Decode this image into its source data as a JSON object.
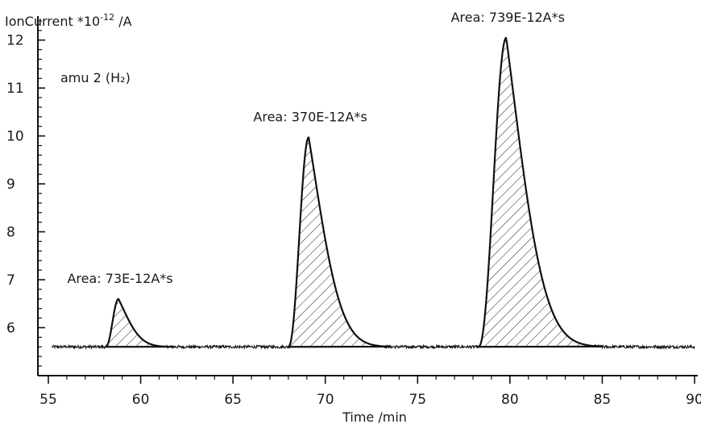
{
  "chart_data": {
    "type": "line",
    "title": "",
    "ylabel": "IonCurrent *10-12 /A",
    "ylabel_base": "IonCurrent *10",
    "ylabel_exp": "-12",
    "ylabel_unit": " /A",
    "xlabel": "Time /min",
    "series_label": "amu 2 (H₂)",
    "xlim": [
      55,
      90
    ],
    "ylim": [
      5.1,
      12.5
    ],
    "x_ticks": [
      55,
      60,
      65,
      70,
      75,
      80,
      85,
      90
    ],
    "y_ticks": [
      6,
      7,
      8,
      9,
      10,
      11,
      12
    ],
    "baseline": 5.6,
    "noise_amplitude": 0.03,
    "grid": false,
    "peaks": [
      {
        "start": 58.1,
        "apex": 58.8,
        "height": 6.6,
        "end": 61.8,
        "area_label": "Area: 73E-12A*s"
      },
      {
        "start": 68.0,
        "apex": 69.1,
        "height": 9.97,
        "end": 73.5,
        "area_label": "Area: 370E-12A*s"
      },
      {
        "start": 78.3,
        "apex": 79.8,
        "height": 12.05,
        "end": 85.0,
        "area_label": "Area: 739E-12A*s"
      }
    ]
  }
}
